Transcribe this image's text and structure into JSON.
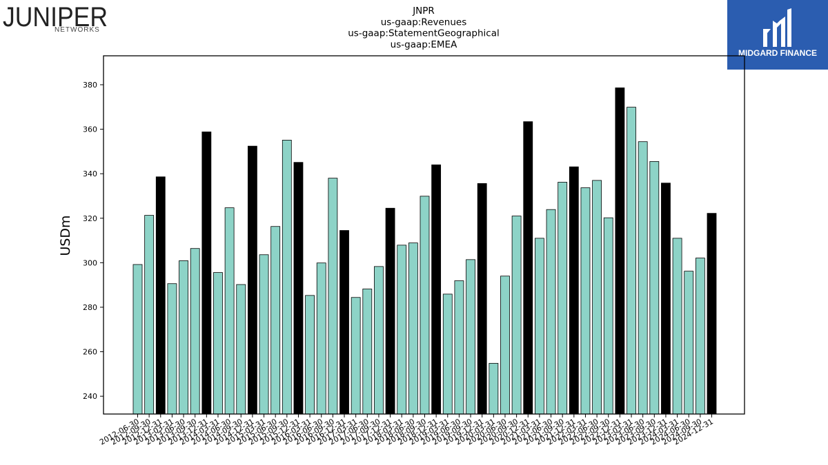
{
  "left_logo": {
    "wordmark": "JUNIPER",
    "sub": "NETWORKS"
  },
  "right_logo": {
    "name": "MIDGARD FINANCE"
  },
  "chart_data": {
    "type": "bar",
    "title_lines": [
      "JNPR",
      "us-gaap:Revenues",
      "us-gaap:StatementGeographical",
      "us-gaap:EMEA"
    ],
    "ylabel": "USDm",
    "ylim": [
      232,
      393
    ],
    "yticks": [
      240,
      260,
      280,
      300,
      320,
      340,
      360,
      380
    ],
    "colors": {
      "quarter": "#8dd3c7",
      "year_end": "#000000",
      "edge": "#000000"
    },
    "categories": [
      "2012-06-30",
      "2012-09-30",
      "2012-12-31",
      "2013-03-31",
      "2013-06-30",
      "2013-09-30",
      "2013-12-31",
      "2014-03-31",
      "2014-06-30",
      "2014-09-30",
      "2014-12-31",
      "2015-03-31",
      "2015-06-30",
      "2015-09-30",
      "2015-12-31",
      "2016-03-31",
      "2016-06-30",
      "2016-09-30",
      "2016-12-31",
      "2017-03-31",
      "2017-06-30",
      "2017-09-30",
      "2017-12-31",
      "2018-03-31",
      "2018-06-30",
      "2018-09-30",
      "2018-12-31",
      "2019-03-31",
      "2019-06-30",
      "2019-09-30",
      "2019-12-31",
      "2020-03-31",
      "2020-06-30",
      "2020-09-30",
      "2020-12-31",
      "2021-03-31",
      "2021-06-30",
      "2021-09-30",
      "2021-12-31",
      "2022-03-31",
      "2022-06-30",
      "2022-09-30",
      "2022-12-31",
      "2023-03-31",
      "2023-06-30",
      "2023-09-30",
      "2023-12-31",
      "2024-03-31",
      "2024-06-30",
      "2024-09-30",
      "2024-12-31"
    ],
    "values": [
      299.2,
      321.3,
      338.6,
      290.6,
      300.9,
      306.4,
      358.8,
      295.6,
      324.7,
      290.2,
      352.4,
      303.6,
      316.3,
      355.1,
      345.1,
      285.3,
      299.9,
      338.0,
      314.5,
      284.4,
      288.2,
      298.3,
      324.5,
      307.9,
      308.9,
      329.9,
      344.0,
      285.9,
      291.9,
      301.4,
      335.6,
      254.8,
      294.0,
      321.0,
      363.4,
      311.0,
      323.9,
      336.2,
      343.1,
      333.7,
      337.0,
      320.2,
      378.6,
      369.9,
      354.4,
      345.5,
      335.8,
      311.0,
      296.2,
      302.1,
      322.2
    ]
  }
}
